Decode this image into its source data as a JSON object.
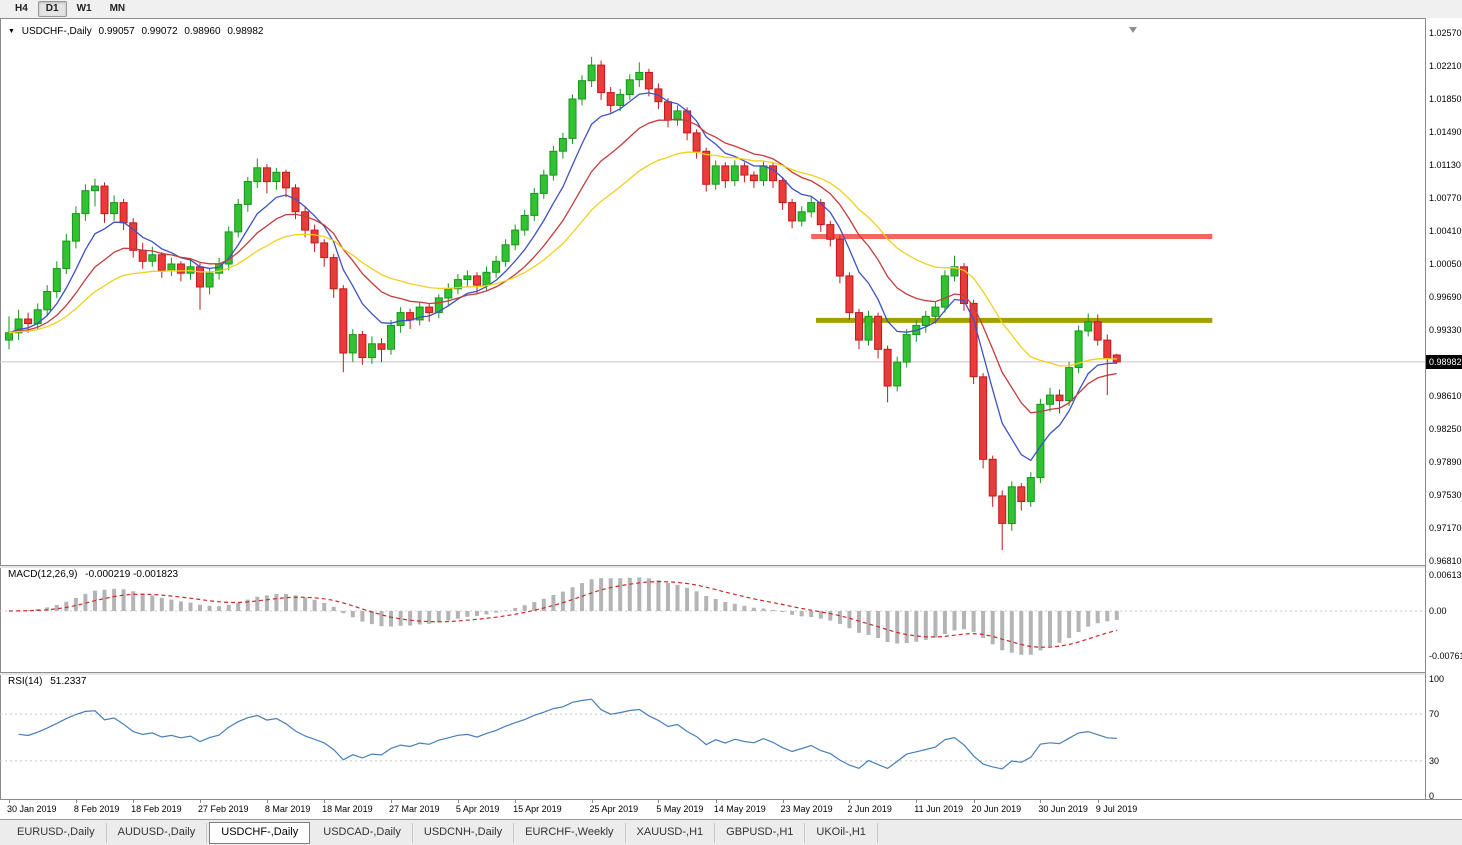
{
  "toolbar": {
    "periods": [
      {
        "label": "H4",
        "active": false
      },
      {
        "label": "D1",
        "active": true
      },
      {
        "label": "W1",
        "active": false
      },
      {
        "label": "MN",
        "active": false
      }
    ]
  },
  "chart": {
    "info": {
      "symbol_label": "USDCHF-,Daily",
      "open": "0.99057",
      "high": "0.99072",
      "low": "0.98960",
      "close": "0.98982"
    },
    "price_axis": {
      "labels": [
        "1.02570",
        "1.02210",
        "1.01850",
        "1.01490",
        "1.01130",
        "1.00770",
        "1.00410",
        "1.00050",
        "0.99690",
        "0.99330",
        "0.98610",
        "0.98250",
        "0.97890",
        "0.97530",
        "0.97170",
        "0.96810"
      ],
      "current_label": "0.98982"
    },
    "colors": {
      "bull_fill": "#32c132",
      "bull_stroke": "#17961b",
      "bear_fill": "#ea3b3b",
      "bear_stroke": "#c11a1a",
      "current_price_line": "#c8c8c8",
      "macd_hist": "#b4b4b4",
      "macd_signal": "#cc2a2a",
      "rsi_line": "#477fb8",
      "level_line": "#c8c8c8",
      "badge_bg": "#000000",
      "badge_text": "#ffffff"
    }
  },
  "panels": {
    "macd": {
      "label": "MACD(12,26,9)",
      "values": "-0.000219 -0.001823",
      "params": [
        12,
        26,
        9
      ],
      "axis_labels": [
        "0.00613",
        "0.00",
        "-0.00761"
      ]
    },
    "rsi": {
      "label": "RSI(14)",
      "value": "51.2337",
      "period": 14,
      "axis_labels": [
        "100",
        "70",
        "30",
        "0"
      ],
      "levels": [
        70,
        30
      ]
    }
  },
  "tabs": [
    {
      "label": "EURUSD-,Daily",
      "active": false
    },
    {
      "label": "AUDUSD-,Daily",
      "active": false
    },
    {
      "label": "USDCHF-,Daily",
      "active": true
    },
    {
      "label": "USDCAD-,Daily",
      "active": false
    },
    {
      "label": "USDCNH-,Daily",
      "active": false
    },
    {
      "label": "EURCHF-,Weekly",
      "active": false
    },
    {
      "label": "XAUUSD-,H1",
      "active": false
    },
    {
      "label": "GBPUSD-,H1",
      "active": false
    },
    {
      "label": "UKOil-,H1",
      "active": false
    }
  ],
  "chart_data": {
    "type": "candlestick",
    "title": "USDCHF-,Daily",
    "current_price": 0.98982,
    "ohlc_format": [
      "open",
      "high",
      "low",
      "close"
    ],
    "candles": [
      [
        0.9922,
        0.9948,
        0.9912,
        0.993
      ],
      [
        0.993,
        0.9955,
        0.9922,
        0.9945
      ],
      [
        0.9945,
        0.9952,
        0.993,
        0.994
      ],
      [
        0.994,
        0.9962,
        0.9934,
        0.9955
      ],
      [
        0.9955,
        0.9982,
        0.9948,
        0.9975
      ],
      [
        0.9975,
        1.0008,
        0.9968,
        1.0
      ],
      [
        1.0,
        1.0038,
        0.9994,
        1.003
      ],
      [
        1.003,
        1.0068,
        1.0022,
        1.006
      ],
      [
        1.006,
        1.0092,
        1.0052,
        1.0085
      ],
      [
        1.0085,
        1.0098,
        1.0068,
        1.009
      ],
      [
        1.009,
        1.0094,
        1.005,
        1.006
      ],
      [
        1.006,
        1.008,
        1.0052,
        1.0072
      ],
      [
        1.0072,
        1.0076,
        1.0042,
        1.005
      ],
      [
        1.005,
        1.0055,
        1.0012,
        1.002
      ],
      [
        1.002,
        1.0028,
        1.0,
        1.0008
      ],
      [
        1.0008,
        1.0024,
        1.0002,
        1.0015
      ],
      [
        1.0015,
        1.0018,
        0.999,
        0.9998
      ],
      [
        0.9998,
        1.0012,
        0.9992,
        1.0005
      ],
      [
        1.0005,
        1.0008,
        0.9986,
        0.9995
      ],
      [
        0.9995,
        1.001,
        0.9988,
        1.0002
      ],
      [
        1.0002,
        1.0006,
        0.9955,
        0.998
      ],
      [
        0.998,
        1.0,
        0.9972,
        0.9995
      ],
      [
        0.9995,
        1.0012,
        0.9988,
        1.0005
      ],
      [
        1.0005,
        1.0046,
        0.9998,
        1.004
      ],
      [
        1.004,
        1.0076,
        1.0034,
        1.007
      ],
      [
        1.007,
        1.01,
        1.0062,
        1.0095
      ],
      [
        1.0095,
        1.012,
        1.0088,
        1.011
      ],
      [
        1.011,
        1.0114,
        1.0082,
        1.0095
      ],
      [
        1.0095,
        1.011,
        1.0086,
        1.0105
      ],
      [
        1.0105,
        1.0108,
        1.0078,
        1.0088
      ],
      [
        1.0088,
        1.0092,
        1.0054,
        1.0062
      ],
      [
        1.0062,
        1.0068,
        1.0034,
        1.0042
      ],
      [
        1.0042,
        1.0048,
        1.0018,
        1.0028
      ],
      [
        1.0028,
        1.0032,
        1.0002,
        1.0012
      ],
      [
        1.0012,
        1.0016,
        0.9968,
        0.9978
      ],
      [
        0.9978,
        0.9982,
        0.9887,
        0.9908
      ],
      [
        0.9908,
        0.9934,
        0.9898,
        0.9928
      ],
      [
        0.9928,
        0.9932,
        0.9895,
        0.9903
      ],
      [
        0.9903,
        0.9926,
        0.9896,
        0.9918
      ],
      [
        0.9918,
        0.9924,
        0.9898,
        0.9912
      ],
      [
        0.9912,
        0.9944,
        0.9906,
        0.9938
      ],
      [
        0.9938,
        0.9958,
        0.993,
        0.9952
      ],
      [
        0.9952,
        0.9956,
        0.9934,
        0.9944
      ],
      [
        0.9944,
        0.9964,
        0.9938,
        0.9958
      ],
      [
        0.9958,
        0.9962,
        0.9942,
        0.9952
      ],
      [
        0.9952,
        0.9972,
        0.9946,
        0.9968
      ],
      [
        0.9968,
        0.9984,
        0.996,
        0.9978
      ],
      [
        0.9978,
        0.9994,
        0.9972,
        0.9988
      ],
      [
        0.9988,
        0.9998,
        0.998,
        0.9992
      ],
      [
        0.9992,
        0.9996,
        0.9972,
        0.9982
      ],
      [
        0.9982,
        1.0002,
        0.9976,
        0.9996
      ],
      [
        0.9996,
        1.0014,
        0.999,
        1.0008
      ],
      [
        1.0008,
        1.0032,
        1.0002,
        1.0026
      ],
      [
        1.0026,
        1.0048,
        1.002,
        1.0042
      ],
      [
        1.0042,
        1.0064,
        1.0036,
        1.0058
      ],
      [
        1.0058,
        1.0088,
        1.0052,
        1.0082
      ],
      [
        1.0082,
        1.0108,
        1.0076,
        1.0102
      ],
      [
        1.0102,
        1.0134,
        1.0096,
        1.0128
      ],
      [
        1.0128,
        1.0148,
        1.012,
        1.0142
      ],
      [
        1.0142,
        1.019,
        1.0136,
        1.0185
      ],
      [
        1.0185,
        1.0211,
        1.0178,
        1.0205
      ],
      [
        1.0205,
        1.0231,
        1.0198,
        1.0222
      ],
      [
        1.0222,
        1.0227,
        1.0184,
        1.0192
      ],
      [
        1.0192,
        1.0198,
        1.017,
        1.0178
      ],
      [
        1.0178,
        1.0196,
        1.0172,
        1.019
      ],
      [
        1.019,
        1.0212,
        1.0184,
        1.0206
      ],
      [
        1.0206,
        1.0225,
        1.0198,
        1.0214
      ],
      [
        1.0214,
        1.0218,
        1.0188,
        1.0196
      ],
      [
        1.0196,
        1.0202,
        1.0174,
        1.0182
      ],
      [
        1.0182,
        1.0186,
        1.0154,
        1.0162
      ],
      [
        1.0162,
        1.0178,
        1.0156,
        1.0172
      ],
      [
        1.0172,
        1.0176,
        1.014,
        1.0148
      ],
      [
        1.0148,
        1.0152,
        1.012,
        1.0128
      ],
      [
        1.0128,
        1.0132,
        1.0084,
        1.0092
      ],
      [
        1.0092,
        1.0118,
        1.0086,
        1.0112
      ],
      [
        1.0112,
        1.0116,
        1.0088,
        1.0096
      ],
      [
        1.0096,
        1.0118,
        1.009,
        1.0112
      ],
      [
        1.0112,
        1.0116,
        1.0094,
        1.0102
      ],
      [
        1.0102,
        1.0106,
        1.0088,
        1.0096
      ],
      [
        1.0096,
        1.0118,
        1.009,
        1.0112
      ],
      [
        1.0112,
        1.0116,
        1.0088,
        1.0096
      ],
      [
        1.0096,
        1.01,
        1.0064,
        1.0072
      ],
      [
        1.0072,
        1.0076,
        1.0044,
        1.0052
      ],
      [
        1.0052,
        1.0068,
        1.0046,
        1.0062
      ],
      [
        1.0062,
        1.0078,
        1.0056,
        1.0072
      ],
      [
        1.0072,
        1.0076,
        1.004,
        1.0048
      ],
      [
        1.0048,
        1.0052,
        1.0024,
        1.0032
      ],
      [
        1.0032,
        1.0036,
        0.9984,
        0.9992
      ],
      [
        0.9992,
        0.9996,
        0.9944,
        0.9952
      ],
      [
        0.9952,
        0.9956,
        0.9912,
        0.9922
      ],
      [
        0.9922,
        0.9954,
        0.9916,
        0.9948
      ],
      [
        0.9948,
        0.9952,
        0.9902,
        0.9912
      ],
      [
        0.9912,
        0.9916,
        0.9854,
        0.9872
      ],
      [
        0.9872,
        0.9904,
        0.9866,
        0.9898
      ],
      [
        0.9898,
        0.9934,
        0.9892,
        0.9928
      ],
      [
        0.9928,
        0.9944,
        0.992,
        0.9938
      ],
      [
        0.9938,
        0.9954,
        0.993,
        0.9948
      ],
      [
        0.9948,
        0.9964,
        0.994,
        0.9958
      ],
      [
        0.9958,
        0.9998,
        0.9952,
        0.9992
      ],
      [
        0.9992,
        1.0014,
        0.9986,
        1.0002
      ],
      [
        1.0002,
        1.0006,
        0.9954,
        0.9962
      ],
      [
        0.9962,
        0.9966,
        0.9874,
        0.9882
      ],
      [
        0.9882,
        0.9886,
        0.9782,
        0.9792
      ],
      [
        0.9792,
        0.9796,
        0.974,
        0.9752
      ],
      [
        0.9752,
        0.9758,
        0.9693,
        0.9722
      ],
      [
        0.9722,
        0.9768,
        0.9714,
        0.9762
      ],
      [
        0.9762,
        0.9766,
        0.9736,
        0.9746
      ],
      [
        0.9746,
        0.9778,
        0.974,
        0.9772
      ],
      [
        0.9772,
        0.9858,
        0.9766,
        0.9852
      ],
      [
        0.9852,
        0.987,
        0.9844,
        0.9862
      ],
      [
        0.9862,
        0.9868,
        0.9842,
        0.9856
      ],
      [
        0.9856,
        0.9898,
        0.985,
        0.9892
      ],
      [
        0.9892,
        0.9938,
        0.9886,
        0.9932
      ],
      [
        0.9932,
        0.9951,
        0.9926,
        0.9942
      ],
      [
        0.9942,
        0.995,
        0.9916,
        0.9922
      ],
      [
        0.9922,
        0.9928,
        0.9862,
        0.9902
      ],
      [
        0.99057,
        0.99072,
        0.9896,
        0.98982
      ]
    ],
    "date_labels": [
      {
        "text": "30 Jan 2019",
        "index": 0
      },
      {
        "text": "8 Feb 2019",
        "index": 7
      },
      {
        "text": "18 Feb 2019",
        "index": 13
      },
      {
        "text": "27 Feb 2019",
        "index": 20
      },
      {
        "text": "8 Mar 2019",
        "index": 27
      },
      {
        "text": "18 Mar 2019",
        "index": 33
      },
      {
        "text": "27 Mar 2019",
        "index": 40
      },
      {
        "text": "5 Apr 2019",
        "index": 47
      },
      {
        "text": "15 Apr 2019",
        "index": 53
      },
      {
        "text": "25 Apr 2019",
        "index": 61
      },
      {
        "text": "5 May 2019",
        "index": 68
      },
      {
        "text": "14 May 2019",
        "index": 74
      },
      {
        "text": "23 May 2019",
        "index": 81
      },
      {
        "text": "2 Jun 2019",
        "index": 88
      },
      {
        "text": "11 Jun 2019",
        "index": 95
      },
      {
        "text": "20 Jun 2019",
        "index": 101
      },
      {
        "text": "30 Jun 2019",
        "index": 108
      },
      {
        "text": "9 Jul 2019",
        "index": 114
      }
    ],
    "overlays": [
      {
        "name": "ma-fast",
        "period": 7,
        "color": "#3c52c4"
      },
      {
        "name": "ma-medium",
        "period": 14,
        "color": "#c43c3c"
      },
      {
        "name": "ma-slow",
        "period": 26,
        "color": "#f0d020"
      }
    ],
    "hlines": [
      {
        "name": "resistance-line",
        "price": 1.0035,
        "color": "#f4655c",
        "width": 5,
        "i1": 84,
        "i2": 126
      },
      {
        "name": "support-line",
        "price": 0.99435,
        "color": "#a0a000",
        "width": 5,
        "i1": 84.5,
        "i2": 126
      }
    ]
  }
}
